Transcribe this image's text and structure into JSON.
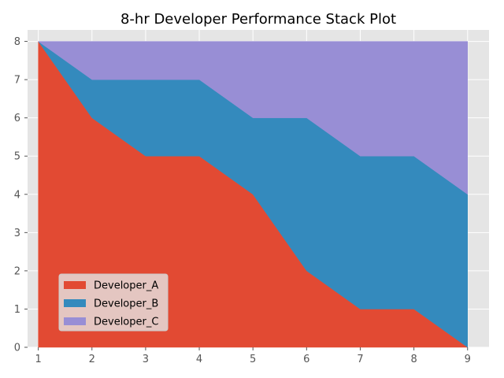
{
  "chart_data": {
    "type": "area",
    "title": "8-hr Developer Performance Stack Plot",
    "xlabel": "",
    "ylabel": "",
    "x": [
      1,
      2,
      3,
      4,
      5,
      6,
      7,
      8,
      9
    ],
    "series": [
      {
        "name": "Developer_A",
        "values": [
          8,
          6,
          5,
          5,
          4,
          2,
          1,
          1,
          0
        ],
        "color": "#E24A33"
      },
      {
        "name": "Developer_B",
        "values": [
          0,
          1,
          2,
          2,
          2,
          4,
          4,
          4,
          4
        ],
        "color": "#348ABD"
      },
      {
        "name": "Developer_C",
        "values": [
          0,
          1,
          1,
          1,
          2,
          2,
          3,
          3,
          4
        ],
        "color": "#988ED5"
      }
    ],
    "xticks": [
      1,
      2,
      3,
      4,
      5,
      6,
      7,
      8,
      9
    ],
    "yticks": [
      0,
      1,
      2,
      3,
      4,
      5,
      6,
      7,
      8
    ],
    "xlim": [
      0.8,
      9.4
    ],
    "ylim": [
      0,
      8.3
    ],
    "grid": true,
    "stacked": true,
    "legend_position": "lower-left",
    "plot_background": "#E5E5E5",
    "grid_color": "#FFFFFF"
  }
}
